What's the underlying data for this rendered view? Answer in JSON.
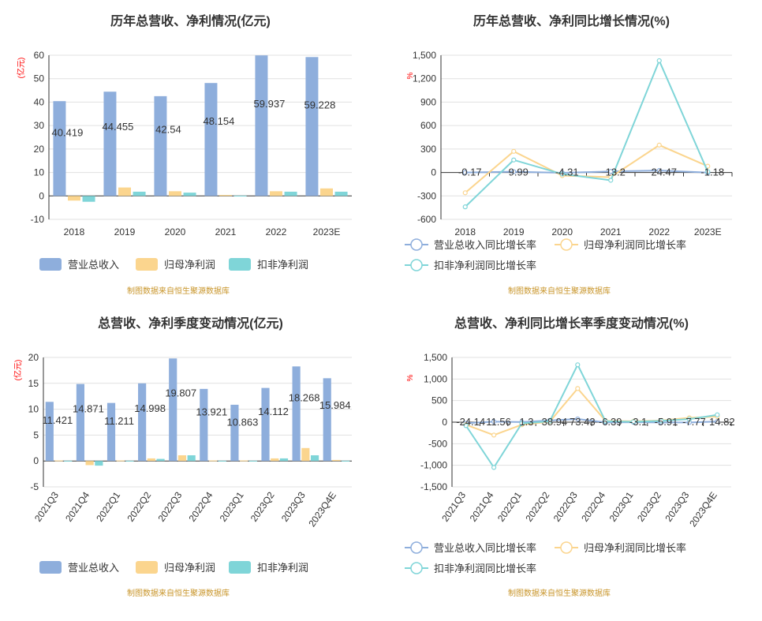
{
  "source_note": "制图数据来自恒生聚源数据库",
  "chart_data": [
    {
      "type": "bar",
      "title": "历年总营收、净利情况(亿元)",
      "unit": "(亿元)",
      "categories": [
        "2018",
        "2019",
        "2020",
        "2021",
        "2022",
        "2023E"
      ],
      "ylim": [
        -10,
        60
      ],
      "yticks": [
        -10,
        0,
        10,
        20,
        30,
        40,
        50,
        60
      ],
      "series": [
        {
          "name": "营业总收入",
          "color": "#8eaedc",
          "values": [
            40.419,
            44.455,
            42.54,
            48.154,
            59.937,
            59.228
          ]
        },
        {
          "name": "归母净利润",
          "color": "#fbd58e",
          "values": [
            -2.0,
            3.6,
            2.0,
            0.4,
            2.0,
            3.2
          ]
        },
        {
          "name": "扣非净利润",
          "color": "#7fd5d8",
          "values": [
            -2.5,
            1.8,
            1.4,
            0.1,
            1.8,
            1.8
          ]
        }
      ],
      "data_labels": [
        "40.419",
        "44.455",
        "42.54",
        "48.154",
        "59.937",
        "59.228"
      ],
      "legend": "bottom"
    },
    {
      "type": "line",
      "title": "历年总营收、净利同比增长情况(%)",
      "unit": "%",
      "categories": [
        "2018",
        "2019",
        "2020",
        "2021",
        "2022",
        "2023E"
      ],
      "ylim": [
        -600,
        1500
      ],
      "yticks": [
        -600,
        -300,
        0,
        300,
        600,
        900,
        1200,
        1500
      ],
      "ytick_labels": [
        "-600",
        "-300",
        "0",
        "300",
        "600",
        "900",
        "1,200",
        "1,500"
      ],
      "series": [
        {
          "name": "营业总收入同比增长率",
          "color": "#8eaedc",
          "values": [
            -0.17,
            9.99,
            -4.31,
            13.2,
            24.47,
            -1.18
          ]
        },
        {
          "name": "归母净利润同比增长率",
          "color": "#fbd58e",
          "values": [
            -260,
            270,
            -40,
            -60,
            350,
            80
          ]
        },
        {
          "name": "扣非净利润同比增长率",
          "color": "#7fd5d8",
          "values": [
            -440,
            160,
            -20,
            -100,
            1430,
            10
          ]
        }
      ],
      "data_labels": [
        "-0.17",
        "9.99",
        "-4.31",
        "13.2",
        "24.47",
        "-1.18"
      ],
      "legend": "bottom"
    },
    {
      "type": "bar",
      "title": "总营收、净利季度变动情况(亿元)",
      "unit": "(亿元)",
      "categories": [
        "2021Q3",
        "2021Q4",
        "2022Q1",
        "2022Q2",
        "2022Q3",
        "2022Q4",
        "2023Q1",
        "2023Q2",
        "2023Q3",
        "2023Q4E"
      ],
      "ylim": [
        -5,
        20
      ],
      "yticks": [
        -5,
        0,
        5,
        10,
        15,
        20
      ],
      "series": [
        {
          "name": "营业总收入",
          "color": "#8eaedc",
          "values": [
            11.421,
            14.871,
            11.211,
            14.998,
            19.807,
            13.921,
            10.863,
            14.112,
            18.268,
            15.984
          ]
        },
        {
          "name": "归母净利润",
          "color": "#fbd58e",
          "values": [
            0.1,
            -0.8,
            0.1,
            0.5,
            1.1,
            0.1,
            0.1,
            0.5,
            2.5,
            0.2
          ]
        },
        {
          "name": "扣非净利润",
          "color": "#7fd5d8",
          "values": [
            0.05,
            -0.9,
            0.05,
            0.4,
            1.1,
            0.05,
            0.05,
            0.5,
            1.1,
            0.05
          ]
        }
      ],
      "data_labels": [
        "11.421",
        "14.871",
        "11.211",
        "14.998",
        "19.807",
        "13.921",
        "10.863",
        "14.112",
        "18.268",
        "15.984"
      ],
      "legend": "bottom"
    },
    {
      "type": "line",
      "title": "总营收、净利同比增长率季度变动情况(%)",
      "unit": "%",
      "categories": [
        "2021Q3",
        "2021Q4",
        "2022Q1",
        "2022Q2",
        "2022Q3",
        "2022Q4",
        "2023Q1",
        "2023Q2",
        "2023Q3",
        "2023Q4E"
      ],
      "ylim": [
        -1500,
        1500
      ],
      "yticks": [
        -1500,
        -1000,
        -500,
        0,
        500,
        1000,
        1500
      ],
      "ytick_labels": [
        "-1,500",
        "-1,000",
        "-500",
        "0",
        "500",
        "1,000",
        "1,500"
      ],
      "series": [
        {
          "name": "营业总收入同比增长率",
          "color": "#8eaedc",
          "values": [
            -24.14,
            11.56,
            1.3,
            38.94,
            73.43,
            -6.39,
            -3.1,
            -5.91,
            -7.77,
            14.82
          ]
        },
        {
          "name": "归母净利润同比增长率",
          "color": "#fbd58e",
          "values": [
            -60,
            -300,
            -60,
            10,
            780,
            30,
            20,
            40,
            100,
            130
          ]
        },
        {
          "name": "扣非净利润同比增长率",
          "color": "#7fd5d8",
          "values": [
            -80,
            -1050,
            -30,
            20,
            1330,
            20,
            10,
            30,
            70,
            170
          ]
        }
      ],
      "data_labels": [
        "-24.14",
        "11.56",
        "1.3",
        "38.94",
        "73.43",
        "-6.39",
        "-3.1",
        "-5.91",
        "-7.77",
        "14.82"
      ],
      "legend": "bottom"
    }
  ]
}
